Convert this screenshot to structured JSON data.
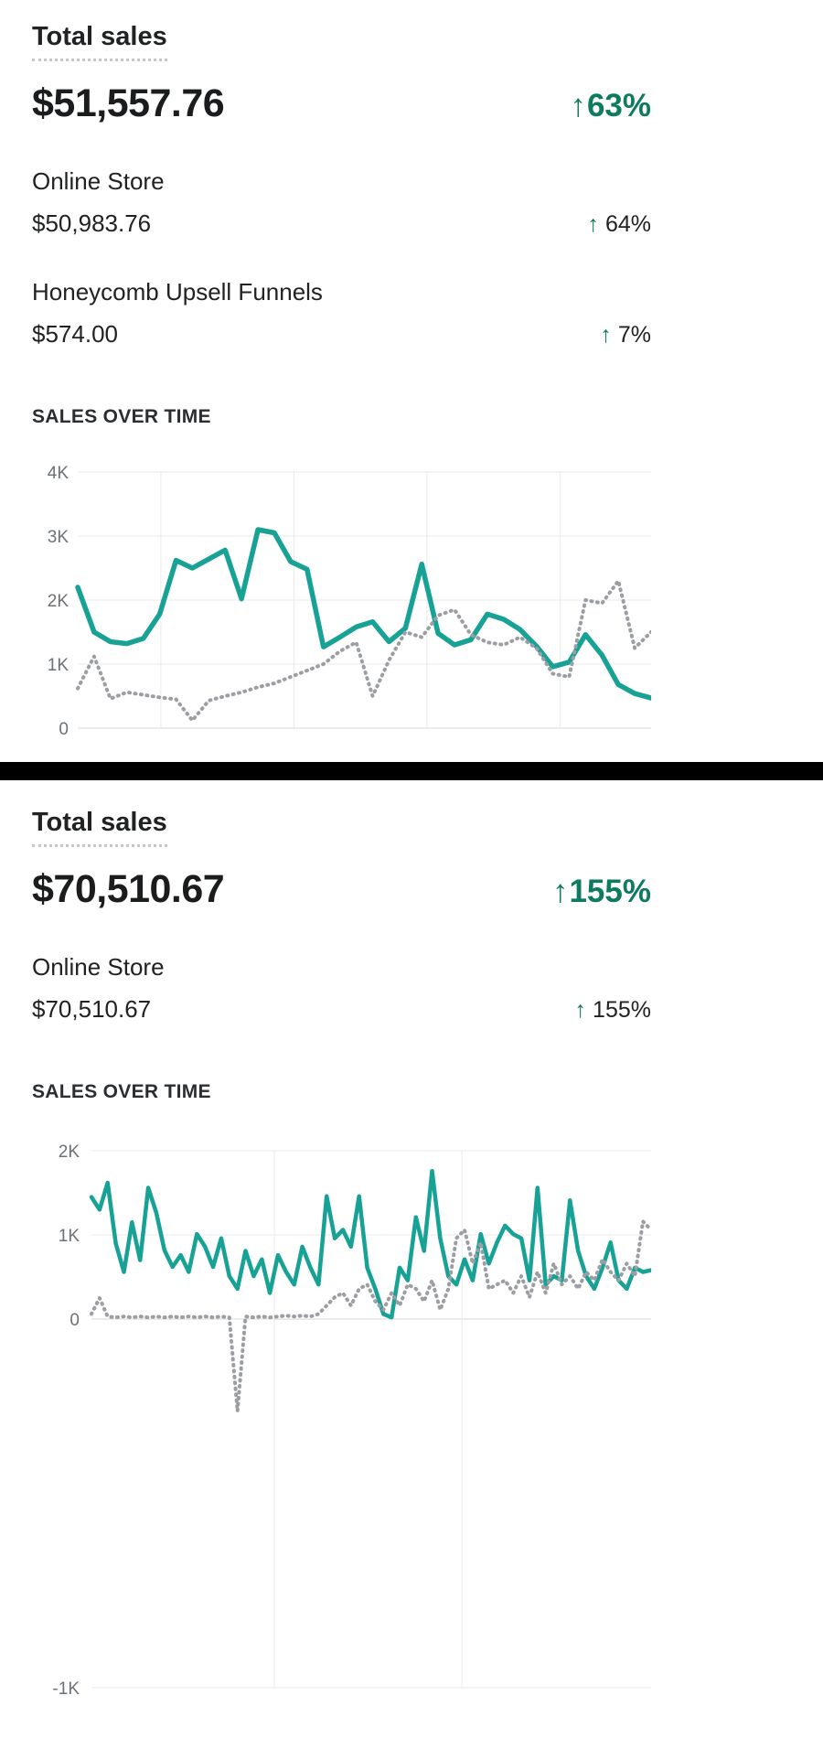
{
  "colors": {
    "line_current": "#17A295",
    "line_comparison": "#9B9EA3",
    "positive": "#0E7A5F",
    "divider": "#000000"
  },
  "panels": [
    {
      "title": "Total sales",
      "total": "$51,557.76",
      "change": {
        "arrow": "↑",
        "pct": "63%"
      },
      "rows": [
        {
          "label": "Online Store",
          "value": "$50,983.76",
          "arrow": "↑",
          "pct": "64%"
        },
        {
          "label": "Honeycomb Upsell Funnels",
          "value": "$574.00",
          "arrow": "↑",
          "pct": "7%"
        }
      ],
      "section_title": "SALES OVER TIME"
    },
    {
      "title": "Total sales",
      "total": "$70,510.67",
      "change": {
        "arrow": "↑",
        "pct": "155%"
      },
      "rows": [
        {
          "label": "Online Store",
          "value": "$70,510.67",
          "arrow": "↑",
          "pct": "155%"
        }
      ],
      "section_title": "SALES OVER TIME"
    }
  ],
  "chart_data": [
    {
      "type": "line",
      "title": "SALES OVER TIME",
      "xlabel": "",
      "ylabel": "",
      "ylim": [
        0,
        4000
      ],
      "grid": true,
      "legend": "none",
      "yticks": [
        {
          "label": "4K",
          "value": 4000
        },
        {
          "label": "3K",
          "value": 3000
        },
        {
          "label": "2K",
          "value": 2000
        },
        {
          "label": "1K",
          "value": 1000
        },
        {
          "label": "0",
          "value": 0
        }
      ],
      "series": [
        {
          "name": "current period",
          "style": "solid",
          "color": "#17A295",
          "values": [
            2200,
            1500,
            1350,
            1320,
            1400,
            1780,
            2620,
            2500,
            2640,
            2780,
            2020,
            3100,
            3050,
            2600,
            2480,
            1270,
            1420,
            1580,
            1660,
            1350,
            1560,
            2560,
            1480,
            1300,
            1380,
            1780,
            1700,
            1540,
            1280,
            960,
            1030,
            1460,
            1140,
            680,
            540,
            470
          ]
        },
        {
          "name": "comparison period",
          "style": "dotted",
          "color": "#9B9EA3",
          "values": [
            620,
            1120,
            460,
            560,
            520,
            480,
            450,
            120,
            430,
            500,
            560,
            640,
            700,
            800,
            900,
            1000,
            1200,
            1340,
            500,
            1060,
            1500,
            1420,
            1760,
            1850,
            1460,
            1340,
            1300,
            1420,
            1250,
            850,
            800,
            2000,
            1950,
            2300,
            1250,
            1500
          ]
        }
      ]
    },
    {
      "type": "line",
      "title": "SALES OVER TIME",
      "xlabel": "",
      "ylabel": "",
      "ylim": [
        -1000,
        2000
      ],
      "grid": true,
      "legend": "none",
      "yticks": [
        {
          "label": "2K",
          "value": 2000
        },
        {
          "label": "1K",
          "value": 1000
        },
        {
          "label": "0",
          "value": 0
        },
        {
          "label": "-1K",
          "value": -1000
        }
      ],
      "series": [
        {
          "name": "current period",
          "style": "solid",
          "color": "#17A295",
          "values": [
            1450,
            1300,
            1620,
            900,
            560,
            1150,
            700,
            1560,
            1260,
            820,
            620,
            760,
            560,
            1010,
            860,
            620,
            960,
            510,
            360,
            810,
            510,
            710,
            310,
            760,
            560,
            410,
            860,
            610,
            410,
            1460,
            960,
            1060,
            860,
            1460,
            610,
            360,
            60,
            20,
            610,
            460,
            1210,
            810,
            1760,
            960,
            510,
            410,
            710,
            460,
            1010,
            660,
            910,
            1110,
            1010,
            960,
            460,
            1560,
            410,
            510,
            460,
            1410,
            810,
            510,
            360,
            610,
            910,
            460,
            360,
            610,
            560,
            580
          ]
        },
        {
          "name": "comparison period",
          "style": "dotted",
          "color": "#9B9EA3",
          "values": [
            60,
            250,
            30,
            20,
            30,
            20,
            30,
            20,
            30,
            20,
            30,
            20,
            30,
            20,
            30,
            20,
            30,
            20,
            -250,
            30,
            20,
            30,
            20,
            30,
            40,
            30,
            40,
            30,
            60,
            160,
            260,
            310,
            160,
            360,
            410,
            210,
            110,
            310,
            160,
            410,
            360,
            210,
            460,
            110,
            360,
            960,
            1060,
            660,
            910,
            360,
            410,
            460,
            310,
            510,
            260,
            560,
            310,
            660,
            410,
            510,
            360,
            560,
            460,
            710,
            560,
            460,
            660,
            510,
            1160,
            1060
          ]
        }
      ]
    }
  ]
}
